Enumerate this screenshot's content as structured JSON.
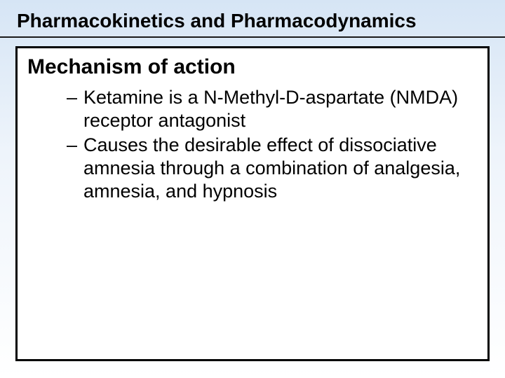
{
  "header": {
    "title": "Pharmacokinetics and Pharmacodynamics"
  },
  "content": {
    "section_title": "Mechanism of action",
    "bullets": [
      "Ketamine is a N-Methyl-D-aspartate (NMDA) receptor antagonist",
      "Causes the desirable effect of dissociative amnesia through a combination of analgesia, amnesia, and hypnosis"
    ]
  },
  "style": {
    "background_gradient_top": "#d6e5f5",
    "background_gradient_mid": "#eef4fb",
    "background_gradient_bottom": "#ffffff",
    "box_border_color": "#000000",
    "box_background": "#ffffff",
    "text_color": "#000000",
    "header_fontsize": 28,
    "section_title_fontsize": 30,
    "bullet_fontsize": 27,
    "font_family": "Arial"
  }
}
